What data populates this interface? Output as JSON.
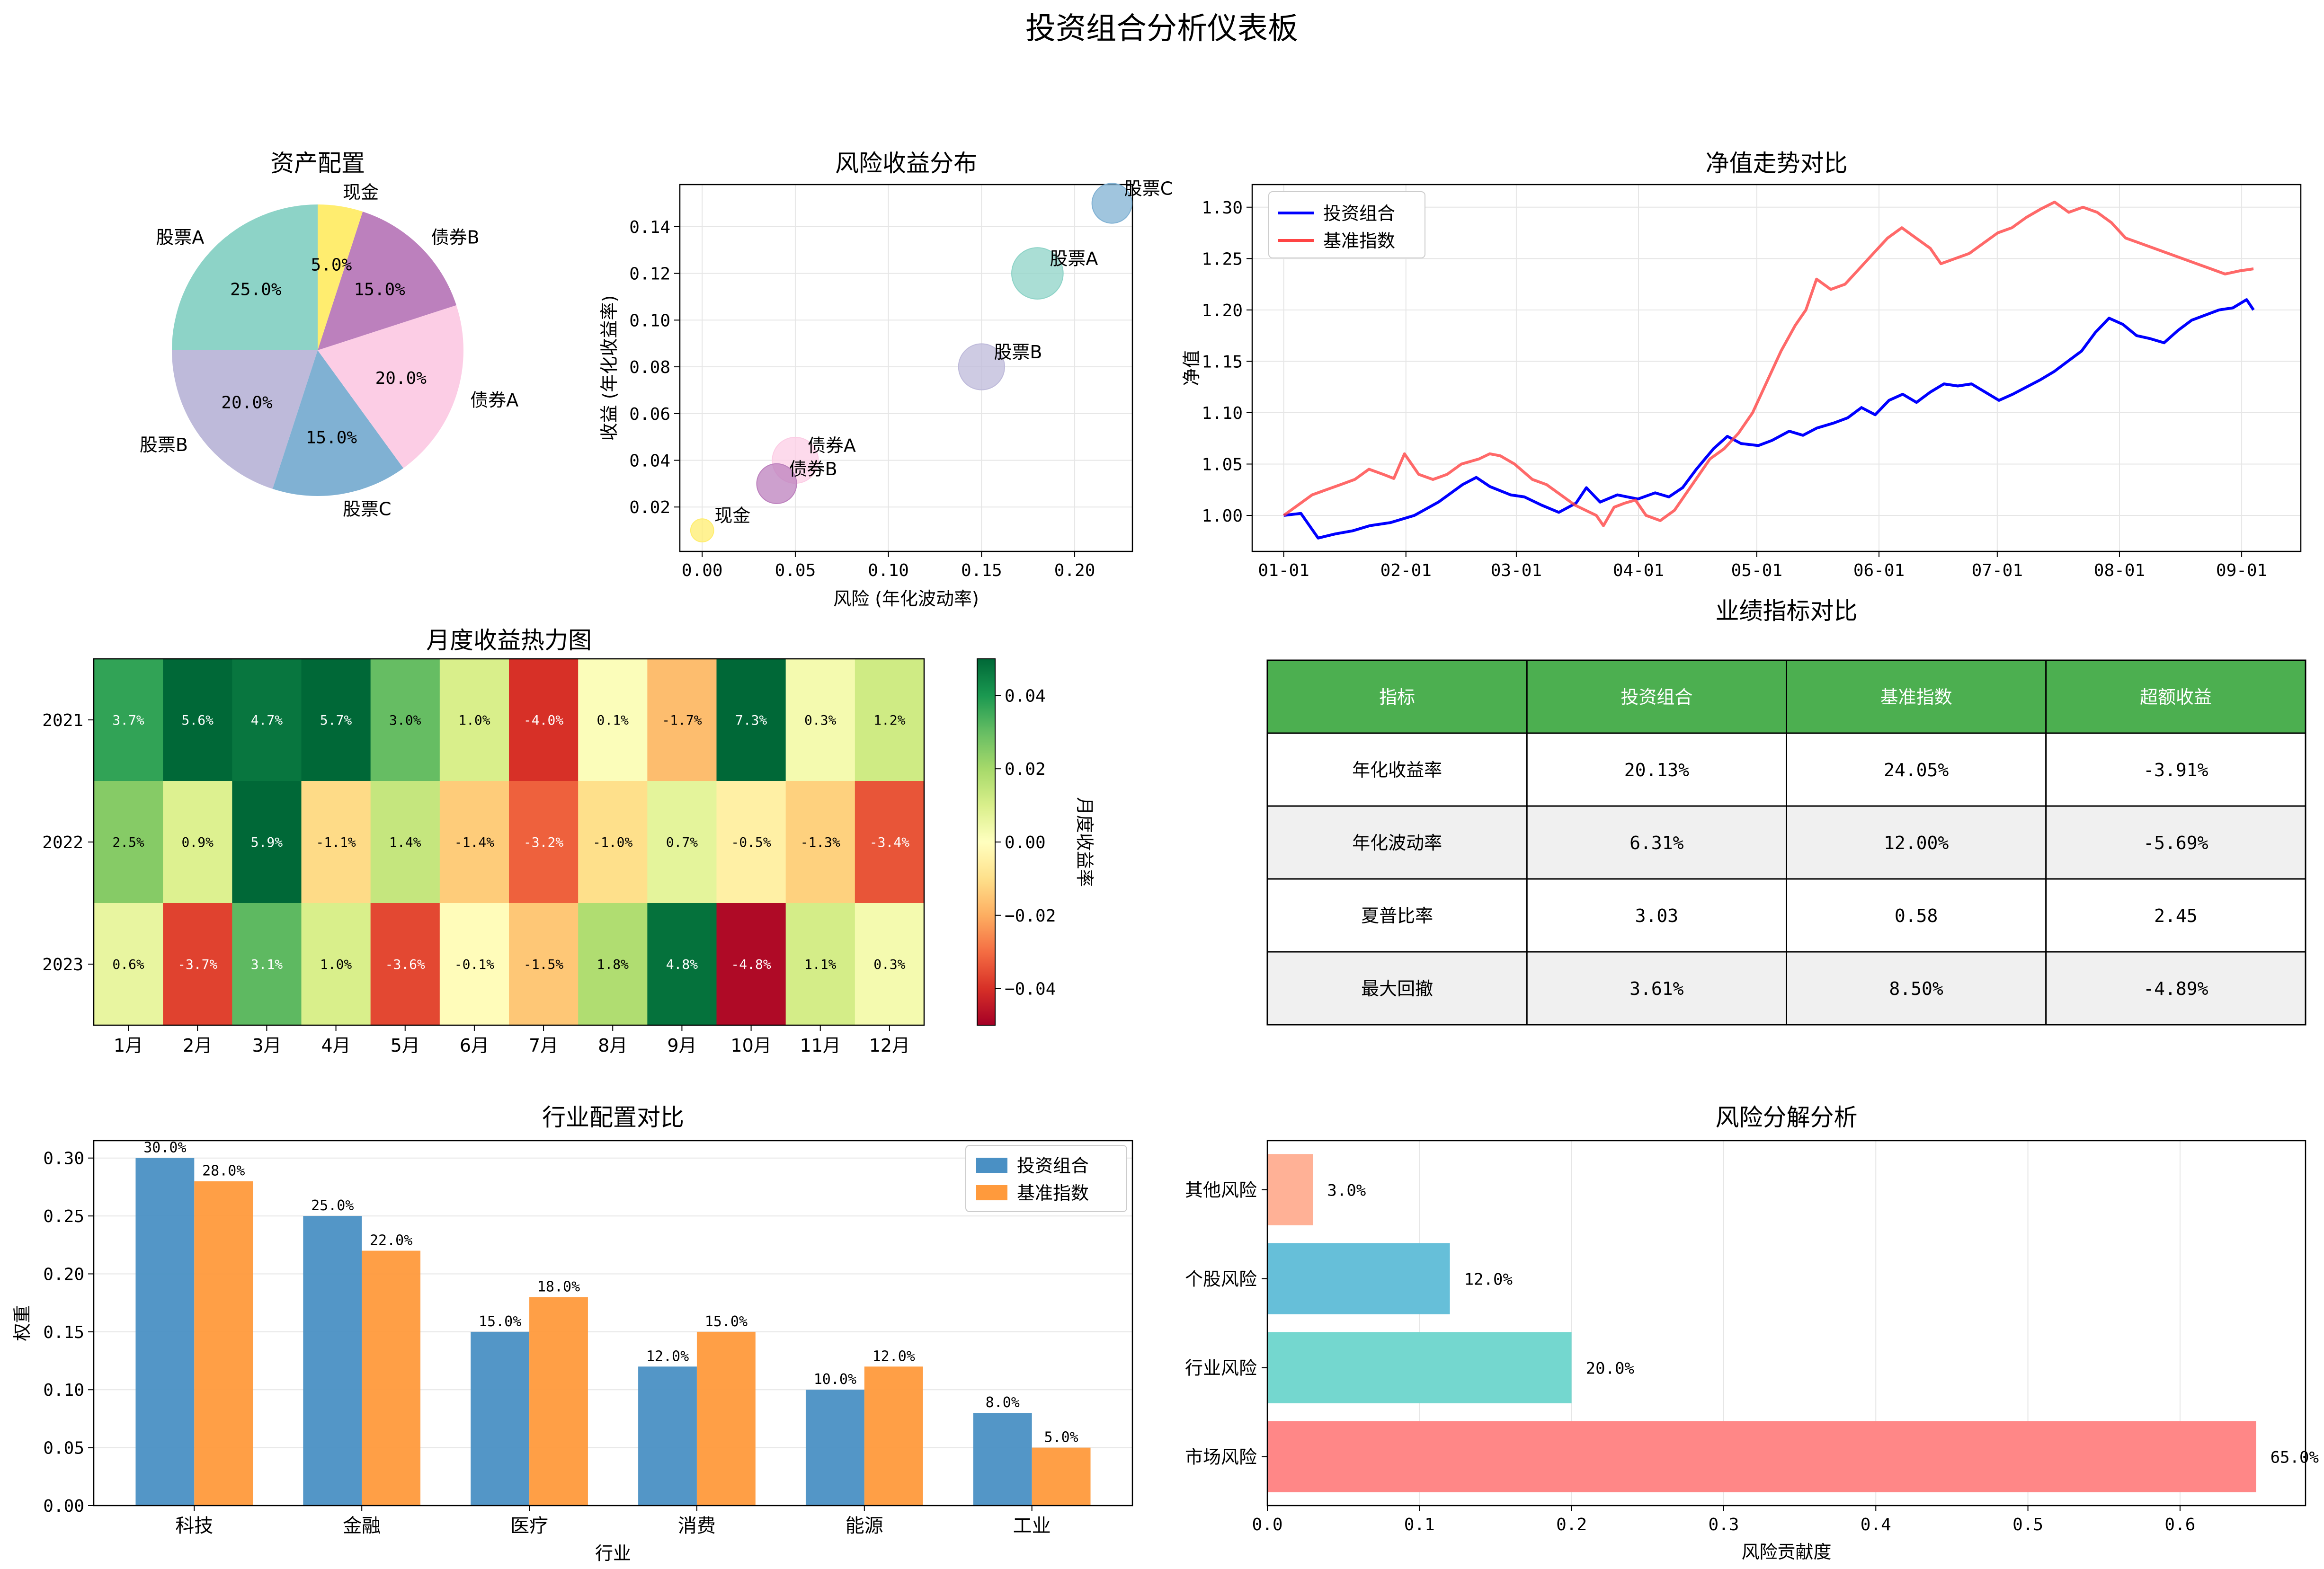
{
  "page": {
    "title": "投资组合分析仪表板"
  },
  "chart_data": [
    {
      "id": "asset-allocation",
      "type": "pie",
      "title": "资产配置",
      "slices": [
        {
          "label": "股票A",
          "value": 25.0,
          "pct_label": "25.0%",
          "color": "#8dd3c7"
        },
        {
          "label": "股票B",
          "value": 20.0,
          "pct_label": "20.0%",
          "color": "#bebada"
        },
        {
          "label": "股票C",
          "value": 15.0,
          "pct_label": "15.0%",
          "color": "#80b1d3"
        },
        {
          "label": "债券A",
          "value": 20.0,
          "pct_label": "20.0%",
          "color": "#fccde5"
        },
        {
          "label": "债券B",
          "value": 15.0,
          "pct_label": "15.0%",
          "color": "#bc80bd"
        },
        {
          "label": "现金",
          "value": 5.0,
          "pct_label": "5.0%",
          "color": "#ffed6f"
        }
      ]
    },
    {
      "id": "risk-return",
      "type": "scatter",
      "title": "风险收益分布",
      "xlabel": "风险 (年化波动率)",
      "ylabel": "收益 (年化收益率)",
      "xlim": [
        -0.012,
        0.231
      ],
      "ylim": [
        0.001,
        0.158
      ],
      "xticks": [
        0.0,
        0.05,
        0.1,
        0.15,
        0.2
      ],
      "xtick_labels": [
        "0.00",
        "0.05",
        "0.10",
        "0.15",
        "0.20"
      ],
      "yticks": [
        0.02,
        0.04,
        0.06,
        0.08,
        0.1,
        0.12,
        0.14
      ],
      "ytick_labels": [
        "0.02",
        "0.04",
        "0.06",
        "0.08",
        "0.10",
        "0.12",
        "0.14"
      ],
      "grid": true,
      "points": [
        {
          "label": "股票A",
          "x": 0.18,
          "y": 0.12,
          "weight": 25,
          "color": "#8dd3c7"
        },
        {
          "label": "股票B",
          "x": 0.15,
          "y": 0.08,
          "weight": 20,
          "color": "#bebada"
        },
        {
          "label": "股票C",
          "x": 0.22,
          "y": 0.15,
          "weight": 15,
          "color": "#80b1d3"
        },
        {
          "label": "债券A",
          "x": 0.05,
          "y": 0.04,
          "weight": 20,
          "color": "#fccde5"
        },
        {
          "label": "债券B",
          "x": 0.04,
          "y": 0.03,
          "weight": 15,
          "color": "#bc80bd"
        },
        {
          "label": "现金",
          "x": 0.0,
          "y": 0.01,
          "weight": 5,
          "color": "#ffed6f"
        }
      ]
    },
    {
      "id": "nav-trend",
      "type": "line",
      "title": "净值走势对比",
      "ylabel": "净值",
      "xlabel": "",
      "xlim": [
        -8,
        258
      ],
      "ylim": [
        0.965,
        1.322
      ],
      "xticks": [
        0,
        31,
        59,
        90,
        120,
        151,
        181,
        212,
        243
      ],
      "xtick_labels": [
        "01-01",
        "02-01",
        "03-01",
        "04-01",
        "05-01",
        "06-01",
        "07-01",
        "08-01",
        "09-01"
      ],
      "yticks": [
        1.0,
        1.05,
        1.1,
        1.15,
        1.2,
        1.25,
        1.3
      ],
      "ytick_labels": [
        "1.00",
        "1.05",
        "1.10",
        "1.15",
        "1.20",
        "1.25",
        "1.30"
      ],
      "grid": true,
      "legend": "top-left",
      "series": [
        {
          "name": "投资组合",
          "color": "#0000ff",
          "knots": [
            [
              0,
              1.0
            ],
            [
              5,
              1.002
            ],
            [
              10,
              0.978
            ],
            [
              15,
              0.982
            ],
            [
              20,
              0.985
            ],
            [
              25,
              0.99
            ],
            [
              31,
              0.993
            ],
            [
              38,
              1.0
            ],
            [
              45,
              1.013
            ],
            [
              52,
              1.03
            ],
            [
              56,
              1.037
            ],
            [
              60,
              1.028
            ],
            [
              66,
              1.02
            ],
            [
              70,
              1.018
            ],
            [
              75,
              1.01
            ],
            [
              80,
              1.003
            ],
            [
              85,
              1.012
            ],
            [
              88,
              1.027
            ],
            [
              92,
              1.013
            ],
            [
              97,
              1.02
            ],
            [
              103,
              1.016
            ],
            [
              108,
              1.022
            ],
            [
              112,
              1.018
            ],
            [
              116,
              1.027
            ],
            [
              120,
              1.045
            ],
            [
              125,
              1.065
            ],
            [
              129,
              1.077
            ],
            [
              133,
              1.07
            ],
            [
              138,
              1.068
            ],
            [
              142,
              1.073
            ],
            [
              147,
              1.082
            ],
            [
              151,
              1.078
            ],
            [
              155,
              1.085
            ],
            [
              160,
              1.09
            ],
            [
              164,
              1.095
            ],
            [
              168,
              1.105
            ],
            [
              172,
              1.098
            ],
            [
              176,
              1.112
            ],
            [
              180,
              1.118
            ],
            [
              184,
              1.11
            ],
            [
              188,
              1.12
            ],
            [
              192,
              1.128
            ],
            [
              196,
              1.126
            ],
            [
              200,
              1.128
            ],
            [
              204,
              1.12
            ],
            [
              208,
              1.112
            ],
            [
              212,
              1.118
            ],
            [
              216,
              1.125
            ],
            [
              220,
              1.132
            ],
            [
              224,
              1.14
            ],
            [
              228,
              1.15
            ],
            [
              232,
              1.16
            ],
            [
              236,
              1.178
            ],
            [
              240,
              1.192
            ],
            [
              244,
              1.186
            ],
            [
              248,
              1.175
            ],
            [
              252,
              1.172
            ],
            [
              256,
              1.168
            ],
            [
              260,
              1.18
            ],
            [
              264,
              1.19
            ],
            [
              268,
              1.195
            ],
            [
              272,
              1.2
            ],
            [
              276,
              1.202
            ],
            [
              280,
              1.21
            ],
            [
              282,
              1.2
            ]
          ]
        },
        {
          "name": "基准指数",
          "color": "#ff4444",
          "knots": [
            [
              0,
              1.0
            ],
            [
              4,
              1.01
            ],
            [
              8,
              1.02
            ],
            [
              12,
              1.025
            ],
            [
              16,
              1.03
            ],
            [
              20,
              1.035
            ],
            [
              24,
              1.045
            ],
            [
              28,
              1.04
            ],
            [
              31,
              1.036
            ],
            [
              34,
              1.06
            ],
            [
              38,
              1.04
            ],
            [
              42,
              1.035
            ],
            [
              46,
              1.04
            ],
            [
              50,
              1.05
            ],
            [
              55,
              1.055
            ],
            [
              58,
              1.06
            ],
            [
              61,
              1.058
            ],
            [
              65,
              1.05
            ],
            [
              70,
              1.035
            ],
            [
              74,
              1.03
            ],
            [
              78,
              1.02
            ],
            [
              82,
              1.01
            ],
            [
              85,
              1.005
            ],
            [
              88,
              1.0
            ],
            [
              90,
              0.99
            ],
            [
              93,
              1.008
            ],
            [
              96,
              1.012
            ],
            [
              99,
              1.015
            ],
            [
              102,
              1.0
            ],
            [
              106,
              0.995
            ],
            [
              110,
              1.005
            ],
            [
              113,
              1.02
            ],
            [
              117,
              1.04
            ],
            [
              120,
              1.055
            ],
            [
              124,
              1.065
            ],
            [
              128,
              1.08
            ],
            [
              132,
              1.1
            ],
            [
              136,
              1.13
            ],
            [
              140,
              1.16
            ],
            [
              144,
              1.185
            ],
            [
              147,
              1.2
            ],
            [
              150,
              1.23
            ],
            [
              154,
              1.22
            ],
            [
              158,
              1.225
            ],
            [
              162,
              1.24
            ],
            [
              166,
              1.255
            ],
            [
              170,
              1.27
            ],
            [
              174,
              1.28
            ],
            [
              178,
              1.27
            ],
            [
              182,
              1.26
            ],
            [
              185,
              1.245
            ],
            [
              189,
              1.25
            ],
            [
              193,
              1.255
            ],
            [
              197,
              1.265
            ],
            [
              201,
              1.275
            ],
            [
              205,
              1.28
            ],
            [
              209,
              1.29
            ],
            [
              213,
              1.298
            ],
            [
              217,
              1.305
            ],
            [
              221,
              1.295
            ],
            [
              225,
              1.3
            ],
            [
              229,
              1.295
            ],
            [
              233,
              1.285
            ],
            [
              237,
              1.27
            ],
            [
              241,
              1.265
            ],
            [
              245,
              1.26
            ],
            [
              249,
              1.255
            ],
            [
              253,
              1.25
            ],
            [
              257,
              1.245
            ],
            [
              261,
              1.24
            ],
            [
              265,
              1.235
            ],
            [
              269,
              1.238
            ],
            [
              273,
              1.24
            ]
          ]
        }
      ]
    },
    {
      "id": "monthly-heatmap",
      "type": "heatmap",
      "title": "月度收益热力图",
      "rows": [
        "2021",
        "2022",
        "2023"
      ],
      "columns": [
        "1月",
        "2月",
        "3月",
        "4月",
        "5月",
        "6月",
        "7月",
        "8月",
        "9月",
        "10月",
        "11月",
        "12月"
      ],
      "values": [
        [
          0.037,
          0.056,
          0.047,
          0.057,
          0.03,
          0.01,
          -0.04,
          0.001,
          -0.017,
          0.073,
          0.003,
          0.012
        ],
        [
          0.025,
          0.009,
          0.059,
          -0.011,
          0.014,
          -0.014,
          -0.032,
          -0.01,
          0.007,
          -0.005,
          -0.013,
          -0.034
        ],
        [
          0.006,
          -0.037,
          0.031,
          0.01,
          -0.036,
          -0.001,
          -0.015,
          0.018,
          0.048,
          -0.048,
          0.011,
          0.003
        ]
      ],
      "value_labels": [
        [
          "3.7%",
          "5.6%",
          "4.7%",
          "5.7%",
          "3.0%",
          "1.0%",
          "-4.0%",
          "0.1%",
          "-1.7%",
          "7.3%",
          "0.3%",
          "1.2%"
        ],
        [
          "2.5%",
          "0.9%",
          "5.9%",
          "-1.1%",
          "1.4%",
          "-1.4%",
          "-3.2%",
          "-1.0%",
          "0.7%",
          "-0.5%",
          "-1.3%",
          "-3.4%"
        ],
        [
          "0.6%",
          "-3.7%",
          "3.1%",
          "1.0%",
          "-3.6%",
          "-0.1%",
          "-1.5%",
          "1.8%",
          "4.8%",
          "-4.8%",
          "1.1%",
          "0.3%"
        ]
      ],
      "vmin": -0.05,
      "vmax": 0.05,
      "colormap": "RdYlGn",
      "colorbar_label": "月度收益率",
      "colorbar_ticks": [
        0.04,
        0.02,
        0.0,
        -0.02,
        -0.04
      ],
      "colorbar_tick_labels": [
        "0.04",
        "0.02",
        "0.00",
        "−0.02",
        "−0.04"
      ]
    },
    {
      "id": "performance-table",
      "type": "table",
      "title": "业绩指标对比",
      "header_color": "#4caf50",
      "stripe_color": "#f0f0f0",
      "columns": [
        "指标",
        "投资组合",
        "基准指数",
        "超额收益"
      ],
      "rows": [
        [
          "年化收益率",
          "20.13%",
          "24.05%",
          "-3.91%"
        ],
        [
          "年化波动率",
          "6.31%",
          "12.00%",
          "-5.69%"
        ],
        [
          "夏普比率",
          "3.03",
          "0.58",
          "2.45"
        ],
        [
          "最大回撤",
          "3.61%",
          "8.50%",
          "-4.89%"
        ]
      ]
    },
    {
      "id": "industry-allocation",
      "type": "bar",
      "title": "行业配置对比",
      "xlabel": "行业",
      "ylabel": "权重",
      "ylim": [
        0,
        0.315
      ],
      "yticks": [
        0.0,
        0.05,
        0.1,
        0.15,
        0.2,
        0.25,
        0.3
      ],
      "ytick_labels": [
        "0.00",
        "0.05",
        "0.10",
        "0.15",
        "0.20",
        "0.25",
        "0.30"
      ],
      "grid": true,
      "legend": "top-right",
      "categories": [
        "科技",
        "金融",
        "医疗",
        "消费",
        "能源",
        "工业"
      ],
      "series": [
        {
          "name": "投资组合",
          "color": "#4a90c4",
          "values": [
            0.3,
            0.25,
            0.15,
            0.12,
            0.1,
            0.08
          ],
          "labels": [
            "30.0%",
            "25.0%",
            "15.0%",
            "12.0%",
            "10.0%",
            "8.0%"
          ]
        },
        {
          "name": "基准指数",
          "color": "#ff9a3c",
          "values": [
            0.28,
            0.22,
            0.18,
            0.15,
            0.12,
            0.05
          ],
          "labels": [
            "28.0%",
            "22.0%",
            "18.0%",
            "15.0%",
            "12.0%",
            "5.0%"
          ]
        }
      ]
    },
    {
      "id": "risk-decomposition",
      "type": "bar",
      "orientation": "horizontal",
      "title": "风险分解分析",
      "xlabel": "风险贡献度",
      "xlim": [
        0,
        0.6825
      ],
      "xticks": [
        0.0,
        0.1,
        0.2,
        0.3,
        0.4,
        0.5,
        0.6
      ],
      "xtick_labels": [
        "0.0",
        "0.1",
        "0.2",
        "0.3",
        "0.4",
        "0.5",
        "0.6"
      ],
      "grid": true,
      "categories": [
        "市场风险",
        "行业风险",
        "个股风险",
        "其他风险"
      ],
      "values": [
        0.65,
        0.2,
        0.12,
        0.03
      ],
      "labels": [
        "65.0%",
        "20.0%",
        "12.0%",
        "3.0%"
      ],
      "colors": [
        "#ff8787",
        "#74d7cf",
        "#66bfd9",
        "#ffb196"
      ]
    }
  ]
}
